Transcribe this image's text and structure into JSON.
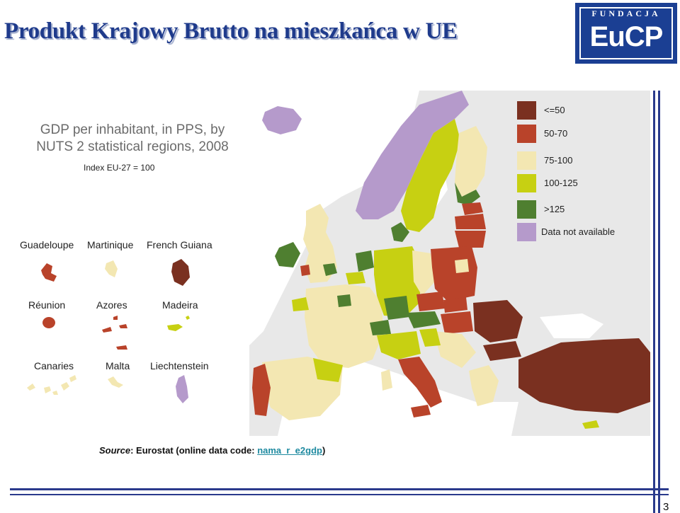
{
  "slide": {
    "title": "Produkt Krajowy Brutto na mieszkańca w UE",
    "page_number": "3"
  },
  "logo": {
    "top_text": "FUNDACJA",
    "main_text": "EuCP"
  },
  "map": {
    "heading_line1": "GDP per inhabitant, in PPS, by",
    "heading_line2": "NUTS 2 statistical regions, 2008",
    "index_note": "Index EU-27 = 100",
    "insets": [
      {
        "label": "Guadeloupe",
        "category": "50-70"
      },
      {
        "label": "Martinique",
        "category": "75-100"
      },
      {
        "label": "French Guiana",
        "category": "<=50"
      },
      {
        "label": "Réunion",
        "category": "50-70"
      },
      {
        "label": "Azores",
        "category": "50-70"
      },
      {
        "label": "Madeira",
        "category": "100-125"
      },
      {
        "label": "Canaries",
        "category": "75-100"
      },
      {
        "label": "Malta",
        "category": "75-100"
      },
      {
        "label": "Liechtenstein",
        "category": "Data not available"
      }
    ]
  },
  "legend": [
    {
      "label": "<=50",
      "color": "#7a3020"
    },
    {
      "label": "50-70",
      "color": "#b9432a"
    },
    {
      "label": "75-100",
      "color": "#f3e7b2"
    },
    {
      "label": "100-125",
      "color": "#c7d012"
    },
    {
      "label": ">125",
      "color": "#4f7f30"
    },
    {
      "label": "Data not available",
      "color": "#b59acb"
    }
  ],
  "source": {
    "prefix": "Source",
    "text": ": Eurostat (online data code: ",
    "link": "nama_r_e2gdp",
    "suffix": ")"
  }
}
